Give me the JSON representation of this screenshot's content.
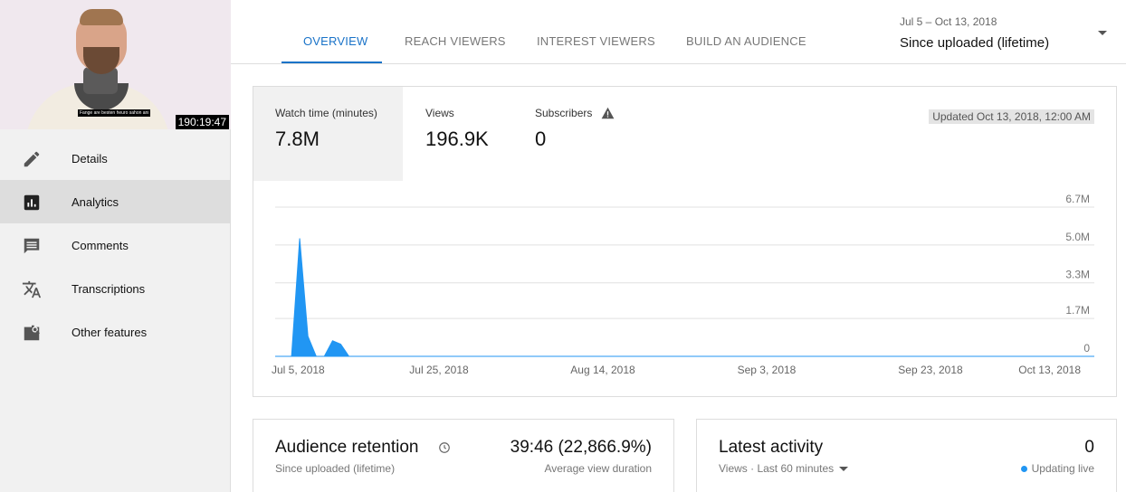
{
  "video": {
    "duration": "190:19:47",
    "subtitle_caption": "Fange are besten heuro sahon ani"
  },
  "sidebar": {
    "items": [
      {
        "label": "Details",
        "icon": "pencil-icon"
      },
      {
        "label": "Analytics",
        "icon": "analytics-icon"
      },
      {
        "label": "Comments",
        "icon": "comment-icon"
      },
      {
        "label": "Transcriptions",
        "icon": "translate-icon"
      },
      {
        "label": "Other features",
        "icon": "other-features-icon"
      }
    ],
    "active_index": 1
  },
  "tabs": [
    {
      "label": "OVERVIEW",
      "active": true
    },
    {
      "label": "REACH VIEWERS",
      "active": false
    },
    {
      "label": "INTEREST VIEWERS",
      "active": false
    },
    {
      "label": "BUILD AN AUDIENCE",
      "active": false
    }
  ],
  "date_range": {
    "range_text": "Jul 5 – Oct 13, 2018",
    "selection": "Since uploaded (lifetime)"
  },
  "metrics": [
    {
      "label": "Watch time (minutes)",
      "value": "7.8M",
      "active": true
    },
    {
      "label": "Views",
      "value": "196.9K",
      "active": false
    },
    {
      "label": "Subscribers",
      "value": "0",
      "active": false,
      "warning_icon": "warning-icon"
    }
  ],
  "updated_text": "Updated Oct 13, 2018, 12:00 AM",
  "chart_data": {
    "type": "area",
    "x_tick_labels": [
      "Jul 5, 2018",
      "Jul 25, 2018",
      "Aug 14, 2018",
      "Sep 3, 2018",
      "Sep 23, 2018",
      "Oct 13, 2018"
    ],
    "y_tick_labels": [
      "0",
      "1.7M",
      "3.3M",
      "5.0M",
      "6.7M"
    ],
    "y_tick_values": [
      0,
      1700000,
      3300000,
      5000000,
      6700000
    ],
    "ylim": [
      0,
      6700000
    ],
    "x_range_days": [
      0,
      100
    ],
    "grid": true,
    "series": [
      {
        "color": "#2196f3",
        "points": [
          {
            "day": 0,
            "value": 0
          },
          {
            "day": 2,
            "value": 0
          },
          {
            "day": 3,
            "value": 5300000
          },
          {
            "day": 4,
            "value": 900000
          },
          {
            "day": 5,
            "value": 0
          },
          {
            "day": 6,
            "value": 0
          },
          {
            "day": 7,
            "value": 700000
          },
          {
            "day": 8,
            "value": 550000
          },
          {
            "day": 9,
            "value": 0
          },
          {
            "day": 100,
            "value": 0
          }
        ]
      }
    ]
  },
  "audience_retention": {
    "title": "Audience retention",
    "subtitle": "Since uploaded (lifetime)",
    "value": "39:46 (22,866.9%)",
    "value_label": "Average view duration"
  },
  "latest_activity": {
    "title": "Latest activity",
    "subtitle": "Views · Last 60 minutes",
    "value": "0",
    "status": "Updating live",
    "status_color": "#2196f3"
  }
}
